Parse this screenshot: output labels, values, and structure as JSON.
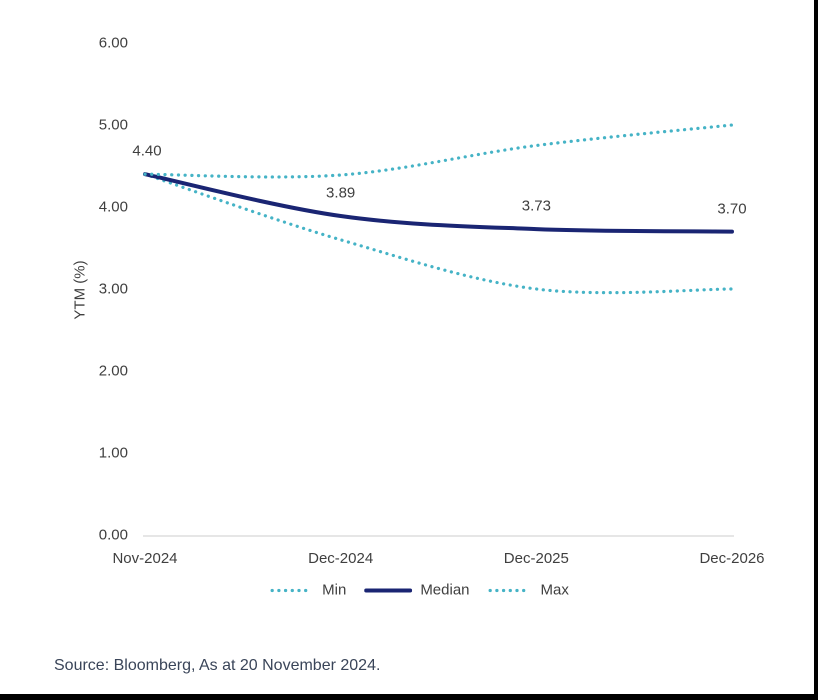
{
  "chart_data": {
    "type": "line",
    "title": "",
    "ylabel": "YTM (%)",
    "xlabel": "",
    "categories": [
      "Nov-2024",
      "Dec-2024",
      "Dec-2025",
      "Dec-2026"
    ],
    "series": [
      {
        "name": "Min",
        "style": "dotted",
        "color": "#45b3c6",
        "values": [
          4.4,
          3.6,
          3.0,
          3.0
        ]
      },
      {
        "name": "Median",
        "style": "solid",
        "color": "#1a2573",
        "values": [
          4.4,
          3.89,
          3.73,
          3.7
        ]
      },
      {
        "name": "Max",
        "style": "dotted",
        "color": "#45b3c6",
        "values": [
          4.4,
          4.39,
          4.75,
          5.0
        ]
      }
    ],
    "data_labels": {
      "series": "Median",
      "values": [
        "4.40",
        "3.89",
        "3.73",
        "3.70"
      ]
    },
    "y_ticks": [
      {
        "v": 0,
        "label": "0.00"
      },
      {
        "v": 1,
        "label": "1.00"
      },
      {
        "v": 2,
        "label": "2.00"
      },
      {
        "v": 3,
        "label": "3.00"
      },
      {
        "v": 4,
        "label": "4.00"
      },
      {
        "v": 5,
        "label": "5.00"
      },
      {
        "v": 6,
        "label": "6.00"
      }
    ],
    "ylim": [
      0,
      6
    ],
    "grid": false,
    "legend_position": "bottom",
    "axis_line_color": "#d7d7d7"
  },
  "source_note": "Source: Bloomberg, As at 20 November 2024."
}
